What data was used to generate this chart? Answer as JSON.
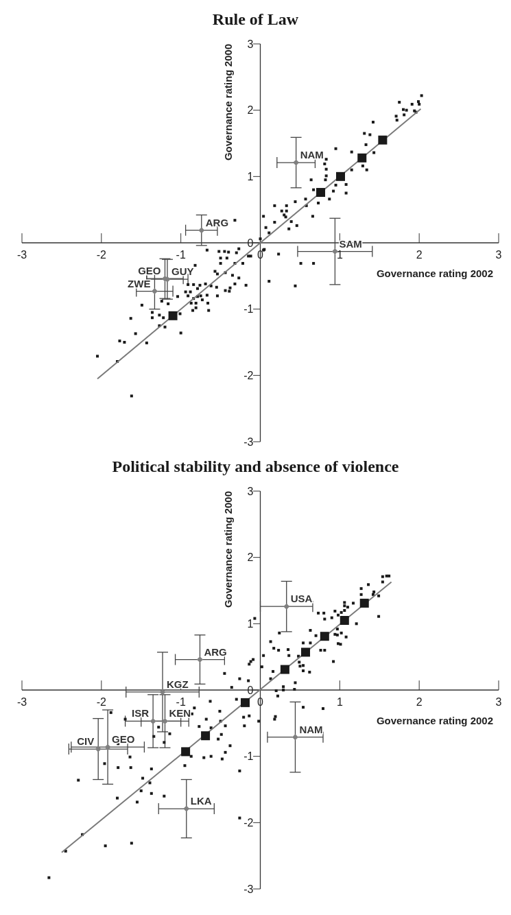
{
  "chart_data": [
    {
      "type": "scatter",
      "title": "Rule of Law",
      "xlabel": "Governance rating 2002",
      "ylabel": "Governance rating 2000",
      "xlim": [
        -3,
        3
      ],
      "ylim": [
        -3,
        3
      ],
      "xticks": [
        -3,
        -2,
        -1,
        0,
        1,
        2,
        3
      ],
      "yticks": [
        -3,
        -2,
        -1,
        0,
        1,
        2,
        3
      ],
      "series": [
        {
          "type": "scatter",
          "marker": "square",
          "color": "#1a1a1a",
          "x": [
            1.75,
            1.71,
            1.72,
            1.81,
            1.84,
            1.8,
            1.91,
            1.99,
            2.0,
            2.03,
            1.94,
            1.96,
            1.42,
            1.31,
            1.38,
            1.33,
            1.43,
            1.29,
            1.34,
            1.15,
            1.15,
            0.95,
            1.08,
            1.08,
            0.95,
            0.92,
            0.87,
            0.81,
            0.83,
            0.83,
            0.83,
            0.82,
            0.64,
            0.67,
            0.73,
            0.57,
            0.58,
            0.44,
            0.18,
            0.27,
            0.33,
            0.33,
            0.3,
            0.32,
            0.18,
            0.39,
            0.36,
            0.46,
            0.66,
            0.11,
            0.07,
            0.04,
            0.51,
            0.67,
            0.23,
            0.11,
            0.44,
            0.05,
            -0.32,
            -0.67,
            -0.82,
            -0.52,
            -0.45,
            -0.4,
            -0.3,
            -0.27,
            -0.15,
            -0.12,
            -0.5,
            -0.42,
            -0.5,
            -0.32,
            -0.22,
            -0.57,
            -0.54,
            -0.44,
            -0.35,
            -0.27,
            -0.32,
            -0.18,
            -0.38,
            -0.44,
            -0.55,
            -0.62,
            -0.69,
            -0.76,
            -0.79,
            -0.91,
            -0.84,
            -0.94,
            -0.88,
            -0.91,
            -0.84,
            -0.79,
            -0.75,
            -0.87,
            -0.81,
            -0.73,
            -0.67,
            -0.54,
            -0.39,
            -0.66,
            -0.65,
            -0.81,
            -0.85,
            -1.01,
            -1.0,
            -1.2,
            -1.27,
            -1.36,
            -1.36,
            -1.27,
            -1.22,
            -1.49,
            -1.63,
            -1.57,
            -1.77,
            -1.71,
            -1.43,
            -2.05,
            -1.8,
            -1.62,
            -1.24,
            -1.16,
            -1.04,
            0.0,
            0.04
          ],
          "values": [
            2.12,
            1.91,
            1.85,
            1.93,
            2.0,
            2.01,
            2.09,
            2.13,
            2.09,
            2.22,
            1.99,
            1.97,
            1.82,
            1.65,
            1.63,
            1.48,
            1.36,
            1.16,
            1.1,
            1.37,
            1.1,
            1.42,
            0.75,
            0.88,
            0.87,
            0.78,
            0.66,
            1.19,
            1.26,
            1.11,
            1.01,
            0.95,
            0.95,
            0.8,
            0.6,
            0.66,
            0.56,
            0.62,
            0.56,
            0.48,
            0.56,
            0.48,
            0.42,
            0.39,
            0.31,
            0.32,
            0.21,
            0.26,
            0.4,
            0.15,
            0.23,
            0.4,
            -0.31,
            -0.31,
            -0.17,
            -0.58,
            -0.65,
            -0.1,
            0.34,
            -0.11,
            -0.34,
            -0.13,
            -0.13,
            -0.14,
            -0.15,
            -0.09,
            -0.2,
            -0.2,
            -0.23,
            -0.23,
            -0.31,
            -0.31,
            -0.31,
            -0.43,
            -0.47,
            -0.45,
            -0.49,
            -0.53,
            -0.62,
            -0.64,
            -0.68,
            -0.72,
            -0.67,
            -0.65,
            -0.62,
            -0.64,
            -0.69,
            -0.63,
            -0.63,
            -0.74,
            -0.74,
            -0.8,
            -0.84,
            -0.81,
            -0.8,
            -0.91,
            -0.91,
            -0.86,
            -0.79,
            -0.8,
            -0.73,
            -0.91,
            -1.02,
            -0.98,
            -1.02,
            -1.07,
            -1.36,
            -1.27,
            -1.25,
            -1.13,
            -1.05,
            -1.09,
            -1.13,
            -0.94,
            -1.14,
            -1.37,
            -1.48,
            -1.5,
            -1.51,
            -1.71,
            -1.79,
            -2.31,
            -0.88,
            -0.92,
            -0.81,
            0.06,
            -0.11
          ]
        },
        {
          "type": "line",
          "color": "#7a7a7a",
          "x": [
            -2.05,
            2.02
          ],
          "values": [
            -2.05,
            2.02
          ]
        },
        {
          "type": "bubble",
          "marker": "square",
          "color": "#1a1a1a",
          "x": [
            -1.1,
            0.76,
            1.01,
            1.28,
            1.54
          ],
          "values": [
            -1.1,
            0.76,
            1.0,
            1.28,
            1.55
          ],
          "sizes": [
            1,
            1,
            1,
            1,
            1
          ]
        },
        {
          "type": "scatter",
          "marker": "diamond",
          "color": "#808080",
          "x": [
            -0.74,
            -1.2,
            -1.17,
            -1.33,
            0.45,
            0.94
          ],
          "values": [
            0.19,
            -0.54,
            -0.55,
            -0.73,
            1.21,
            -0.13
          ],
          "errors": [
            0.23,
            0.3,
            0.3,
            0.27,
            0.38,
            0.5
          ],
          "xerrors": [
            0.2,
            0.23,
            0.26,
            0.23,
            0.24,
            0.47
          ]
        }
      ],
      "annotations": [
        {
          "text": "ARG",
          "x": -0.74,
          "y": 0.19
        },
        {
          "text": "GEO",
          "x": -1.2,
          "y": -0.54
        },
        {
          "text": "GUY",
          "x": -1.17,
          "y": -0.55
        },
        {
          "text": "ZWE",
          "x": -1.33,
          "y": -0.73
        },
        {
          "text": "NAM",
          "x": 0.45,
          "y": 1.21
        },
        {
          "text": "SAM",
          "x": 0.94,
          "y": -0.13
        }
      ]
    },
    {
      "type": "scatter",
      "title": "Political stability and absence of violence",
      "xlabel": "Governance rating 2002",
      "ylabel": "Governance rating 2000",
      "xlim": [
        -3,
        3
      ],
      "ylim": [
        -3,
        3
      ],
      "xticks": [
        -3,
        -2,
        -1,
        0,
        1,
        2,
        3
      ],
      "yticks": [
        -3,
        -2,
        -1,
        0,
        1,
        2,
        3
      ],
      "series": [
        {
          "type": "scatter",
          "marker": "square",
          "color": "#1a1a1a",
          "x": [
            1.54,
            1.59,
            1.62,
            1.54,
            1.36,
            1.27,
            1.43,
            1.42,
            1.49,
            1.27,
            1.49,
            1.17,
            1.06,
            1.06,
            1.1,
            1.06,
            1.02,
            0.94,
            0.98,
            0.73,
            0.8,
            0.81,
            0.9,
            0.97,
            0.97,
            0.98,
            1.01,
            0.94,
            1.02,
            1.08,
            1.21,
            0.63,
            0.7,
            0.63,
            0.54,
            0.48,
            0.76,
            0.81,
            0.92,
            0.24,
            0.13,
            0.17,
            0.23,
            0.35,
            0.36,
            0.04,
            -0.09,
            -0.12,
            -0.14,
            0.02,
            0.16,
            0.13,
            0.2,
            0.22,
            0.29,
            0.29,
            0.43,
            0.44,
            0.49,
            0.5,
            0.54,
            0.62,
            0.54,
            -0.15,
            -0.07,
            0.54,
            0.79,
            0.19,
            -0.14,
            -0.02,
            -0.45,
            -0.26,
            -0.36,
            -0.3,
            -0.63,
            -0.83,
            -0.86,
            -0.68,
            -0.77,
            -0.62,
            -0.5,
            -0.44,
            -0.51,
            -0.21,
            -0.53,
            -0.49,
            -0.38,
            -0.44,
            -0.48,
            -0.62,
            -0.71,
            -0.87,
            -0.95,
            -1.14,
            -1.28,
            -1.7,
            -1.88,
            -1.21,
            -1.34,
            -1.79,
            -1.64,
            -1.96,
            -1.79,
            -1.63,
            -1.37,
            -1.48,
            -1.39,
            -1.5,
            -1.37,
            -1.21,
            -1.55,
            -1.8,
            -2.29,
            -0.26,
            -2.24,
            -2.45,
            -1.95,
            -1.62,
            -2.66,
            -0.26,
            0.18,
            -0.2
          ],
          "values": [
            1.71,
            1.72,
            1.72,
            1.63,
            1.59,
            1.53,
            1.48,
            1.44,
            1.42,
            1.44,
            1.11,
            1.31,
            1.32,
            1.27,
            1.25,
            1.2,
            1.17,
            1.19,
            1.13,
            1.16,
            1.16,
            1.07,
            1.09,
            0.92,
            0.83,
            0.7,
            0.69,
            0.84,
            0.86,
            0.8,
            1.0,
            0.9,
            0.82,
            0.71,
            0.71,
            0.51,
            0.6,
            0.6,
            0.43,
            0.86,
            0.73,
            0.63,
            0.6,
            0.61,
            0.52,
            0.52,
            0.46,
            0.43,
            0.39,
            0.35,
            0.28,
            0.17,
            -0.01,
            -0.09,
            0.05,
            0.0,
            0.01,
            0.11,
            0.42,
            0.36,
            0.29,
            0.27,
            0.37,
            0.14,
            1.08,
            -0.26,
            -0.28,
            -0.4,
            -0.39,
            -0.47,
            0.25,
            0.17,
            0.04,
            -0.14,
            -0.17,
            -0.27,
            -0.36,
            -0.44,
            -0.55,
            -0.57,
            -0.47,
            -0.54,
            -0.32,
            -0.41,
            -0.74,
            -0.67,
            -0.84,
            -0.94,
            -1.04,
            -1.0,
            -1.02,
            -1.0,
            -1.14,
            -0.66,
            -0.56,
            -0.44,
            -0.34,
            -0.79,
            -0.7,
            -0.81,
            -1.01,
            -1.11,
            -1.17,
            -1.17,
            -1.19,
            -1.33,
            -1.4,
            -1.52,
            -1.56,
            -1.6,
            -1.69,
            -1.63,
            -1.36,
            -1.22,
            -2.18,
            -2.43,
            -2.35,
            -2.31,
            -2.83,
            -1.93,
            -0.44,
            -0.54
          ]
        },
        {
          "type": "line",
          "color": "#7a7a7a",
          "x": [
            -2.5,
            1.65
          ],
          "values": [
            -2.45,
            1.63
          ]
        },
        {
          "type": "bubble",
          "marker": "square",
          "color": "#1a1a1a",
          "x": [
            -0.94,
            -0.69,
            -0.19,
            0.31,
            0.57,
            0.81,
            1.06,
            1.31
          ],
          "values": [
            -0.93,
            -0.69,
            -0.19,
            0.31,
            0.57,
            0.81,
            1.05,
            1.31
          ],
          "sizes": [
            1,
            1,
            1,
            1,
            1,
            1,
            1,
            1
          ]
        },
        {
          "type": "scatter",
          "marker": "diamond",
          "color": "#808080",
          "x": [
            0.33,
            -0.76,
            -1.23,
            -1.35,
            -1.2,
            -2.04,
            -1.92,
            -0.93,
            0.44
          ],
          "values": [
            1.26,
            0.46,
            -0.03,
            -0.47,
            -0.47,
            -0.89,
            -0.86,
            -1.79,
            -0.71
          ],
          "errors": [
            0.38,
            0.37,
            0.6,
            0.4,
            0.4,
            0.46,
            0.56,
            0.44,
            0.53
          ],
          "xerrors": [
            0.33,
            0.31,
            0.46,
            0.35,
            0.3,
            0.37,
            0.46,
            0.35,
            0.35
          ]
        }
      ],
      "annotations": [
        {
          "text": "USA",
          "x": 0.33,
          "y": 1.26
        },
        {
          "text": "ARG",
          "x": -0.76,
          "y": 0.46
        },
        {
          "text": "KGZ",
          "x": -1.23,
          "y": -0.03
        },
        {
          "text": "ISR",
          "x": -1.35,
          "y": -0.47
        },
        {
          "text": "KEN",
          "x": -1.2,
          "y": -0.47
        },
        {
          "text": "CIV",
          "x": -2.04,
          "y": -0.89
        },
        {
          "text": "GEO",
          "x": -1.92,
          "y": -0.86
        },
        {
          "text": "LKA",
          "x": -0.93,
          "y": -1.79
        },
        {
          "text": "NAM",
          "x": 0.44,
          "y": -0.71
        }
      ]
    }
  ]
}
